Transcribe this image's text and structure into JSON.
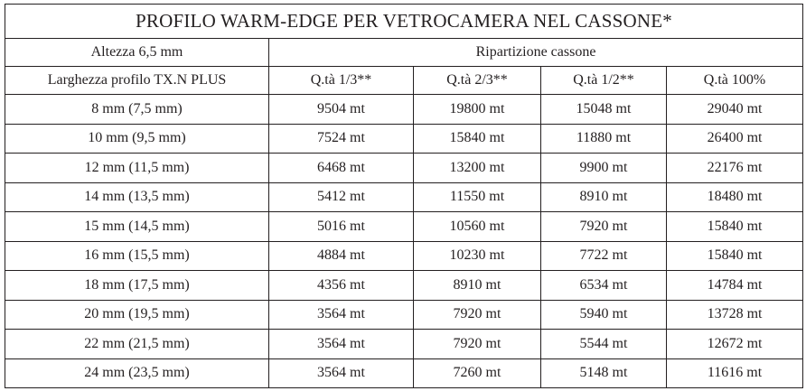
{
  "title": "PROFILO WARM-EDGE PER VETROCAMERA NEL CASSONE*",
  "header": {
    "height_label": "Altezza 6,5 mm",
    "group_label": "Ripartizione cassone",
    "width_label": "Larghezza profilo TX.N PLUS",
    "columns": [
      "Q.tà 1/3**",
      "Q.tà 2/3**",
      "Q.tà 1/2**",
      "Q.tà 100%"
    ]
  },
  "rows": [
    {
      "size": "8 mm (7,5 mm)",
      "q13": "9504 mt",
      "q23": "19800 mt",
      "q12": "15048 mt",
      "q100": "29040 mt"
    },
    {
      "size": "10 mm (9,5 mm)",
      "q13": "7524 mt",
      "q23": "15840 mt",
      "q12": "11880 mt",
      "q100": "26400 mt"
    },
    {
      "size": "12 mm (11,5 mm)",
      "q13": "6468 mt",
      "q23": "13200 mt",
      "q12": "9900 mt",
      "q100": "22176 mt"
    },
    {
      "size": "14 mm (13,5 mm)",
      "q13": "5412 mt",
      "q23": "11550 mt",
      "q12": "8910 mt",
      "q100": "18480 mt"
    },
    {
      "size": "15 mm (14,5 mm)",
      "q13": "5016 mt",
      "q23": "10560 mt",
      "q12": "7920 mt",
      "q100": "15840 mt"
    },
    {
      "size": "16 mm (15,5 mm)",
      "q13": "4884 mt",
      "q23": "10230 mt",
      "q12": "7722 mt",
      "q100": "15840 mt"
    },
    {
      "size": "18 mm (17,5 mm)",
      "q13": "4356 mt",
      "q23": "8910 mt",
      "q12": "6534 mt",
      "q100": "14784 mt"
    },
    {
      "size": "20 mm (19,5 mm)",
      "q13": "3564 mt",
      "q23": "7920 mt",
      "q12": "5940 mt",
      "q100": "13728 mt"
    },
    {
      "size": "22 mm (21,5 mm)",
      "q13": "3564 mt",
      "q23": "7920 mt",
      "q12": "5544 mt",
      "q100": "12672 mt"
    },
    {
      "size": "24 mm (23,5 mm)",
      "q13": "3564 mt",
      "q23": "7260 mt",
      "q12": "5148 mt",
      "q100": "11616 mt"
    }
  ]
}
